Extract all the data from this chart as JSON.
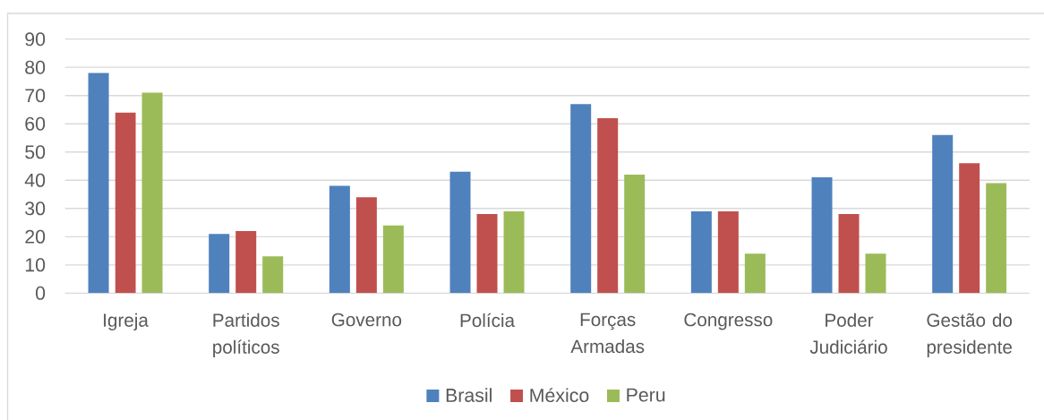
{
  "chart_data": {
    "type": "bar",
    "categories": [
      "Igreja",
      "Partidos políticos",
      "Governo",
      "Polícia",
      "Forças Armadas",
      "Congresso",
      "Poder Judiciário",
      "Gestão do presidente"
    ],
    "series": [
      {
        "name": "Brasil",
        "color": "#4f81bd",
        "values": [
          78,
          21,
          38,
          43,
          67,
          29,
          41,
          56
        ]
      },
      {
        "name": "México",
        "color": "#c0504d",
        "values": [
          64,
          22,
          34,
          28,
          62,
          29,
          28,
          46
        ]
      },
      {
        "name": "Peru",
        "color": "#9bbb59",
        "values": [
          71,
          13,
          24,
          29,
          42,
          14,
          14,
          39
        ]
      }
    ],
    "ylim": [
      0,
      90
    ],
    "yticks": [
      0,
      10,
      20,
      30,
      40,
      50,
      60,
      70,
      80,
      90
    ],
    "grid": "y",
    "legend": "bottom"
  }
}
